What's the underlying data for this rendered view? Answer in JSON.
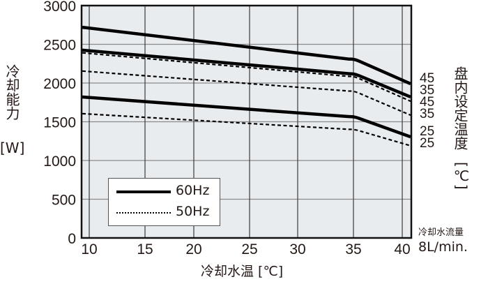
{
  "chart_data": {
    "type": "line",
    "title": "",
    "xlabel": "冷却水温 [℃]",
    "ylabel": "冷却能力 [W]",
    "right_label": "盘内设定温度 [℃]",
    "flow_note": {
      "label": "冷却水流量",
      "value": "8L/min."
    },
    "x_ticks": [
      10,
      15,
      20,
      25,
      30,
      35,
      40
    ],
    "y_ticks": [
      0,
      500,
      1000,
      1500,
      2000,
      2500,
      3000
    ],
    "xlim": [
      9.3,
      41
    ],
    "ylim": [
      0,
      3000
    ],
    "grid": true,
    "legend": {
      "position": "lower-left inside",
      "entries": [
        "60Hz",
        "50Hz"
      ]
    },
    "x": [
      9.3,
      35,
      41
    ],
    "series": [
      {
        "name": "60Hz 45℃",
        "style": "solid",
        "values": [
          2720,
          2315,
          1990
        ],
        "end_label": "45"
      },
      {
        "name": "60Hz 35℃",
        "style": "solid",
        "values": [
          2425,
          2125,
          1820
        ],
        "end_label": "35"
      },
      {
        "name": "50Hz 45℃",
        "style": "dashed",
        "values": [
          2390,
          2090,
          1765
        ],
        "end_label": "45"
      },
      {
        "name": "50Hz 35℃",
        "style": "dashed",
        "values": [
          2155,
          1900,
          1585
        ],
        "end_label": "35"
      },
      {
        "name": "60Hz 25℃",
        "style": "solid",
        "values": [
          1820,
          1570,
          1305
        ],
        "end_label": "25"
      },
      {
        "name": "50Hz 25℃",
        "style": "dashed",
        "values": [
          1605,
          1405,
          1190
        ],
        "end_label": "25"
      }
    ]
  },
  "labels": {
    "y_axis": "冷却能力",
    "y_unit": "[W]",
    "x_axis": "冷却水温 [℃]",
    "right_axis": "盘内设定温度",
    "right_unit": "[℃]",
    "flow_label": "冷却水流量",
    "flow_value": "8L/min.",
    "legend_60": "60Hz",
    "legend_50": "50Hz",
    "end_labels": [
      "45",
      "35",
      "45",
      "35",
      "25",
      "25"
    ]
  }
}
